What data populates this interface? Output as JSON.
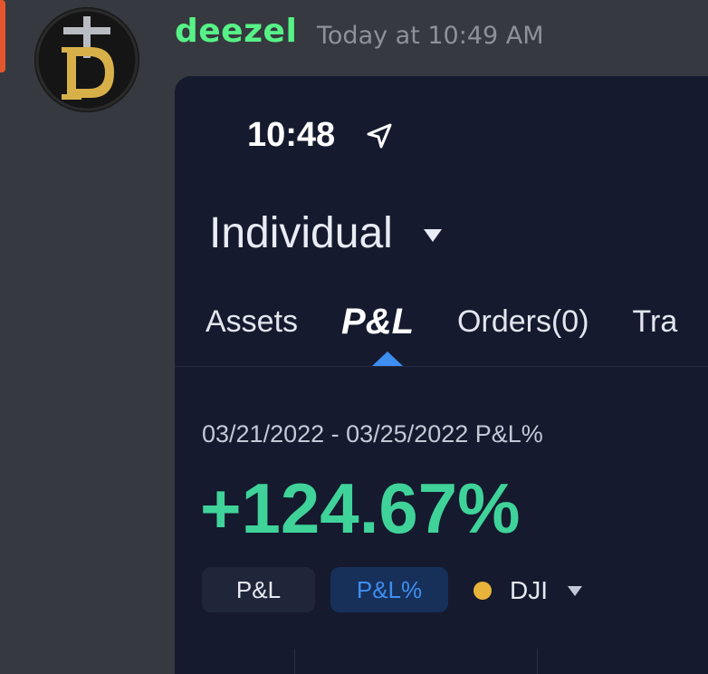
{
  "message": {
    "username": "deezel",
    "timestamp": "Today at 10:49 AM"
  },
  "phone": {
    "status_time": "10:48",
    "account_name": "Individual",
    "tabs": [
      {
        "label": "Assets",
        "active": false
      },
      {
        "label": "P&L",
        "active": true
      },
      {
        "label": "Orders(0)",
        "active": false
      },
      {
        "label": "Tra",
        "active": false
      }
    ],
    "date_range": "03/21/2022 - 03/25/2022 P&L%",
    "pnl_value": "+124.67%",
    "chips": {
      "pnl": "P&L",
      "pnl_pct": "P&L%"
    },
    "index_selector": "DJI"
  },
  "colors": {
    "background": "#36393f",
    "username": "#57f287",
    "timestamp": "#8e9297",
    "app_background": "#151a2e",
    "gain": "#3fd39a",
    "accent_blue": "#3d8ef0",
    "dji_dot": "#e8b33b"
  },
  "icons": {
    "location": "location-arrow-icon",
    "account_caret": "caret-down-icon",
    "index_caret": "caret-down-icon"
  }
}
